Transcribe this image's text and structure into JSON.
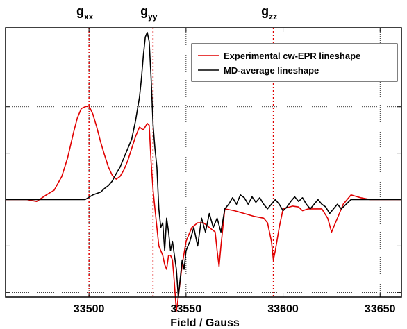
{
  "chart_data": {
    "type": "line",
    "xlabel": "Field / Gauss",
    "ylabel": "",
    "xlim": [
      33457,
      33661
    ],
    "ylim": [
      -1.05,
      1.85
    ],
    "x_ticks": [
      33500,
      33550,
      33600,
      33650
    ],
    "x_tick_labels": [
      "33500",
      "33550",
      "33600",
      "33650"
    ],
    "y_gridlines": [
      -1.0,
      -0.5,
      0.5,
      1.0
    ],
    "x_gridlines": [
      33500,
      33550,
      33600,
      33650
    ],
    "grid": true,
    "legend_position": "top-right",
    "markers": [
      {
        "main": "g",
        "sub": "xx",
        "x": 33500
      },
      {
        "main": "g",
        "sub": "yy",
        "x": 33533
      },
      {
        "main": "g",
        "sub": "zz",
        "x": 33595
      }
    ],
    "colors": {
      "experimental": "#e00000",
      "md": "#000000",
      "marker_line": "#e00000",
      "grid": "#000000"
    },
    "series": [
      {
        "name": "Experimental cw-EPR lineshape",
        "color": "#e00000",
        "x": [
          33457,
          33462,
          33468,
          33473,
          33478,
          33482,
          33486,
          33489,
          33492,
          33494,
          33496,
          33498,
          33500,
          33502,
          33504,
          33506,
          33508,
          33510,
          33512,
          33514,
          33516,
          33518,
          33520,
          33522,
          33524,
          33526,
          33528,
          33530,
          33531,
          33532,
          33533,
          33534,
          33535,
          33536,
          33537,
          33538,
          33539,
          33540,
          33541,
          33542,
          33543,
          33544,
          33545,
          33546,
          33548,
          33550,
          33553,
          33556,
          33559,
          33562,
          33565,
          33566,
          33567,
          33568,
          33570,
          33575,
          33580,
          33585,
          33590,
          33592,
          33594,
          33595,
          33596,
          33598,
          33600,
          33605,
          33608,
          33610,
          33613,
          33616,
          33620,
          33623,
          33625,
          33628,
          33631,
          33635,
          33640,
          33645,
          33650,
          33655,
          33661
        ],
        "y": [
          0,
          0,
          0,
          -0.02,
          0.05,
          0.1,
          0.25,
          0.45,
          0.72,
          0.88,
          0.98,
          1.0,
          1.01,
          0.92,
          0.78,
          0.62,
          0.48,
          0.35,
          0.26,
          0.22,
          0.25,
          0.32,
          0.42,
          0.55,
          0.68,
          0.78,
          0.75,
          0.82,
          0.8,
          0.4,
          0.1,
          -0.1,
          -0.3,
          -0.5,
          -0.55,
          -0.6,
          -0.7,
          -0.75,
          -0.6,
          -0.6,
          -0.65,
          -0.9,
          -1.2,
          -1.05,
          -0.7,
          -0.45,
          -0.3,
          -0.25,
          -0.25,
          -0.3,
          -0.35,
          -0.55,
          -0.72,
          -0.5,
          -0.1,
          -0.12,
          -0.15,
          -0.18,
          -0.2,
          -0.25,
          -0.45,
          -0.65,
          -0.55,
          -0.3,
          -0.1,
          -0.07,
          -0.08,
          -0.12,
          -0.1,
          -0.1,
          -0.1,
          -0.2,
          -0.35,
          -0.2,
          -0.05,
          0.05,
          0.02,
          0,
          0,
          0,
          0
        ]
      },
      {
        "name": "MD-average lineshape",
        "color": "#000000",
        "x": [
          33457,
          33470,
          33480,
          33490,
          33498,
          33502,
          33506,
          33508,
          33510,
          33512,
          33514,
          33516,
          33518,
          33520,
          33522,
          33524,
          33526,
          33527,
          33528,
          33529,
          33530,
          33531,
          33532,
          33533,
          33534,
          33535,
          33536,
          33537,
          33538,
          33539,
          33540,
          33541,
          33542,
          33543,
          33544,
          33545,
          33546,
          33547,
          33548,
          33549,
          33550,
          33552,
          33554,
          33556,
          33558,
          33560,
          33562,
          33564,
          33566,
          33568,
          33570,
          33572,
          33574,
          33576,
          33578,
          33580,
          33582,
          33584,
          33586,
          33588,
          33590,
          33592,
          33594,
          33596,
          33598,
          33600,
          33602,
          33604,
          33606,
          33608,
          33610,
          33612,
          33614,
          33616,
          33618,
          33620,
          33622,
          33624,
          33626,
          33628,
          33630,
          33635,
          33640,
          33650,
          33661
        ],
        "y": [
          0,
          0,
          0,
          0,
          0,
          0.05,
          0.08,
          0.12,
          0.15,
          0.2,
          0.28,
          0.35,
          0.45,
          0.55,
          0.65,
          0.85,
          1.1,
          1.3,
          1.55,
          1.75,
          1.8,
          1.7,
          1.3,
          0.8,
          0.55,
          0.35,
          -0.1,
          -0.3,
          -0.25,
          -0.55,
          -0.2,
          -0.35,
          -0.55,
          -0.45,
          -0.6,
          -0.75,
          -1.05,
          -0.85,
          -0.65,
          -0.75,
          -0.55,
          -0.45,
          -0.3,
          -0.5,
          -0.2,
          -0.35,
          -0.15,
          -0.3,
          -0.2,
          -0.35,
          -0.1,
          -0.05,
          0.02,
          -0.05,
          0.05,
          0.02,
          -0.05,
          0.03,
          -0.03,
          0.02,
          -0.05,
          -0.1,
          -0.05,
          0,
          -0.05,
          -0.12,
          -0.08,
          -0.02,
          0.03,
          -0.02,
          0.02,
          -0.05,
          -0.1,
          -0.05,
          0,
          -0.05,
          -0.08,
          -0.15,
          -0.1,
          -0.05,
          -0.1,
          0,
          0,
          0,
          0
        ]
      }
    ]
  }
}
